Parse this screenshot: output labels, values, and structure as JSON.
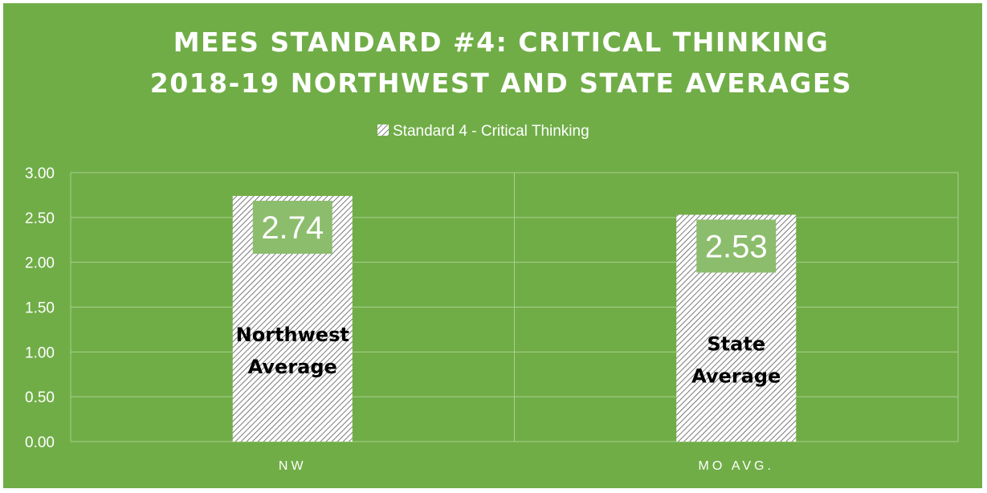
{
  "chart_data": {
    "type": "bar",
    "title": "MEES STANDARD #4: CRITICAL THINKING",
    "subtitle": "2018-19 NORTHWEST AND STATE AVERAGES",
    "categories": [
      "NW",
      "MO AVG."
    ],
    "series": [
      {
        "name": "Standard 4 - Critical Thinking",
        "values": [
          2.74,
          2.53
        ]
      }
    ],
    "data_labels": [
      "2.74",
      "2.53"
    ],
    "bar_annotations": [
      [
        "Northwest",
        "Average"
      ],
      [
        "State",
        "Average"
      ]
    ],
    "yticks": [
      "0.00",
      "0.50",
      "1.00",
      "1.50",
      "2.00",
      "2.50",
      "3.00"
    ],
    "ylim": [
      0,
      3
    ],
    "xlabel": "",
    "ylabel": "",
    "grid": true,
    "legend_position": "top",
    "colors": {
      "background": "#70ad47",
      "grid": "#a9d08e",
      "bar_fill": "#ffffff",
      "bar_hatch": "#595959",
      "label_box": "#8cbd6c",
      "text": "#ffffff",
      "annotation_text": "#000000"
    }
  }
}
